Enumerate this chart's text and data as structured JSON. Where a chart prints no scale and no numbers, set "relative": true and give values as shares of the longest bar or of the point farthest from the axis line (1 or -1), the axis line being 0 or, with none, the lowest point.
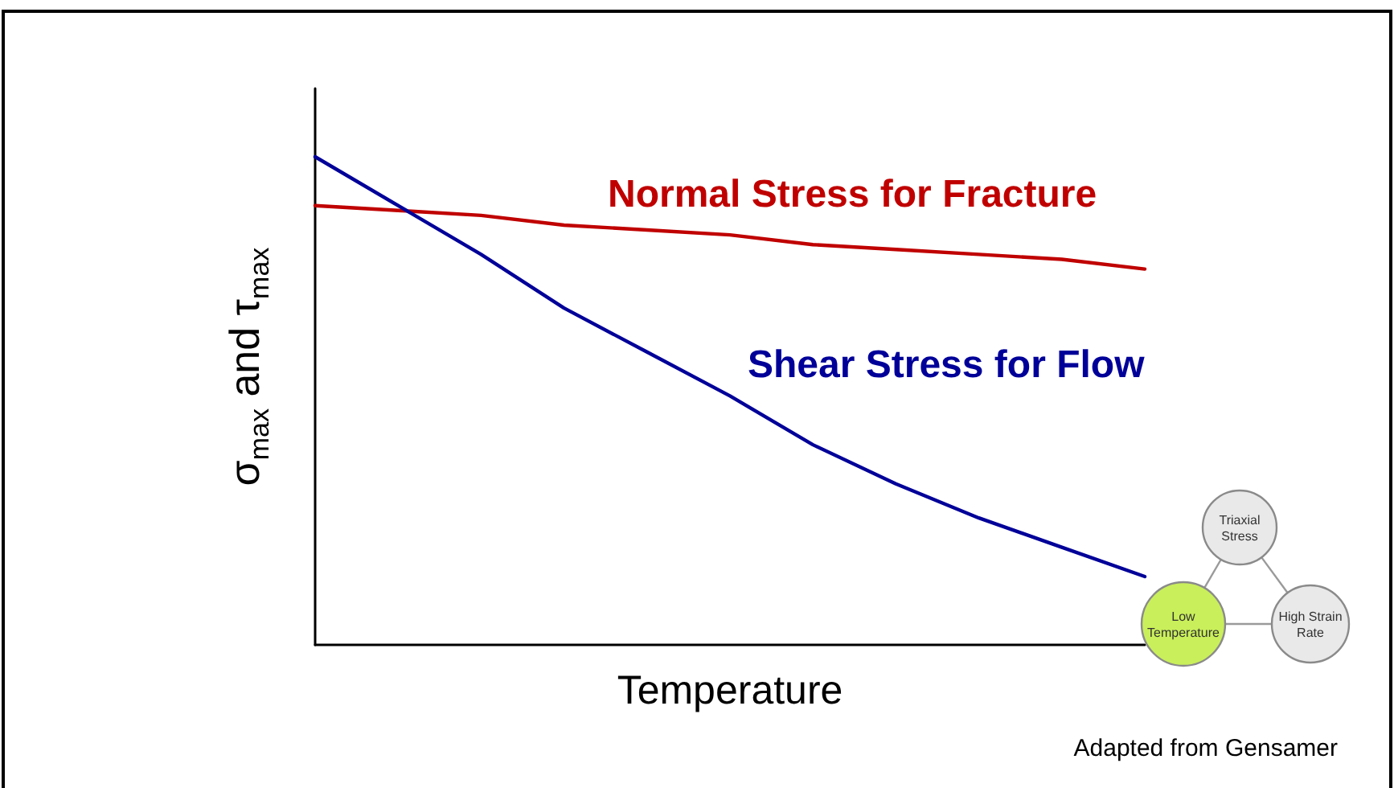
{
  "chart_data": {
    "type": "line",
    "relative": true,
    "xlabel": "Temperature",
    "ylabel": "σ$_{max}$ and τ$_{max}$",
    "categories": [
      null,
      null,
      null,
      null,
      null,
      null,
      null,
      null,
      null,
      null,
      null
    ],
    "series": [
      {
        "name": "Normal Stress for Fracture",
        "color": "#c00000",
        "values": [
          0.9,
          0.89,
          0.88,
          0.86,
          0.85,
          0.84,
          0.82,
          0.81,
          0.8,
          0.79,
          0.77
        ]
      },
      {
        "name": "Shear Stress for Flow",
        "color": "#000099",
        "values": [
          1,
          0.9,
          0.8,
          0.69,
          0.6,
          0.51,
          0.41,
          0.33,
          0.26,
          0.2,
          0.14
        ]
      }
    ],
    "annotations": [
      "Triaxial Stress",
      "Low Temperature",
      "High Strain Rate",
      "Adapted from Gensamer"
    ],
    "marker": "none",
    "line_style": "solid"
  }
}
